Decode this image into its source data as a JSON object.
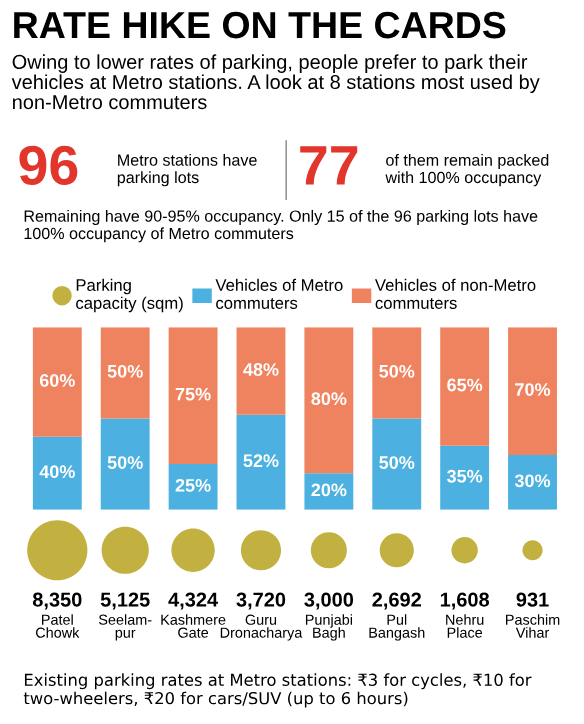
{
  "chart_data": [
    {
      "type": "bar",
      "title": "RATE HIKE ON THE CARDS",
      "subtitle": "Owing to lower rates of parking, people prefer to park their vehicles at Metro stations. A look at 8 stations most used by non-Metro commuters",
      "annotations": [
        "96",
        "Metro stations have\nparking lots",
        "77",
        "of them remain packed\nwith 100% occupancy",
        "Remaining have 90-95% occupancy. Only 15 of the 96 parking lots have 100% occupancy of Metro commuters"
      ],
      "categories": [
        null,
        null,
        null,
        null,
        null,
        null,
        null,
        null
      ],
      "stacked": true,
      "ylim": [
        0,
        100
      ],
      "legend": "top",
      "series": [
        {
          "name": "Vehicles of Metro\ncommuters",
          "color": "#4cb1e1",
          "values": [
            40,
            50,
            25,
            52,
            20,
            50,
            35,
            30
          ],
          "value_labels": [
            "40%",
            "50%",
            "25%",
            "52%",
            "20%",
            "50%",
            "35%",
            "30%"
          ]
        },
        {
          "name": "Vehicles of non-Metro\ncommuters",
          "color": "#f0835f",
          "values": [
            60,
            50,
            75,
            48,
            80,
            50,
            65,
            70
          ],
          "value_labels": [
            "60%",
            "50%",
            "75%",
            "48%",
            "80%",
            "50%",
            "65%",
            "70%"
          ]
        }
      ]
    },
    {
      "type": "other",
      "legend": "top",
      "categories": [
        "Patel\nChowk",
        "Seelam-\npur",
        "Kashmere\nGate",
        "Guru\nDronacharya",
        "Punjabi\nBagh",
        "Pul\nBangash",
        "Nehru\nPlace",
        "Paschim\nVihar"
      ],
      "annotations": [
        "Existing parking rates at Metro stations: ₹3 for cycles, ₹10 for two-wheelers, ₹20 for cars/SUV (up to 6 hours)"
      ],
      "series": [
        {
          "name": "Parking\ncapacity (sqm)",
          "color": "#c2b140",
          "values": [
            8350,
            5125,
            4324,
            3720,
            3000,
            2692,
            1608,
            931
          ],
          "value_labels": [
            "8,350",
            "5,125",
            "4,324",
            "3,720",
            "3,000",
            "2,692",
            "1,608",
            "931"
          ]
        }
      ]
    }
  ]
}
